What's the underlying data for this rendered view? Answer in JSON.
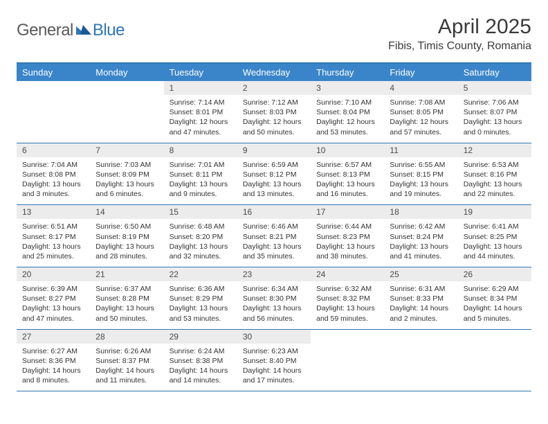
{
  "logo": {
    "text1": "General",
    "text2": "Blue"
  },
  "title": "April 2025",
  "location": "Fibis, Timis County, Romania",
  "colors": {
    "header_bg": "#3a85c9",
    "header_text": "#ffffff",
    "border": "#2f75b5",
    "daynum_bg": "#ececec",
    "text": "#333333",
    "logo_gray": "#5a5a5a",
    "logo_blue": "#2f75b5"
  },
  "day_headers": [
    "Sunday",
    "Monday",
    "Tuesday",
    "Wednesday",
    "Thursday",
    "Friday",
    "Saturday"
  ],
  "weeks": [
    [
      null,
      null,
      {
        "n": "1",
        "sunrise": "7:14 AM",
        "sunset": "8:01 PM",
        "daylight": "12 hours and 47 minutes."
      },
      {
        "n": "2",
        "sunrise": "7:12 AM",
        "sunset": "8:03 PM",
        "daylight": "12 hours and 50 minutes."
      },
      {
        "n": "3",
        "sunrise": "7:10 AM",
        "sunset": "8:04 PM",
        "daylight": "12 hours and 53 minutes."
      },
      {
        "n": "4",
        "sunrise": "7:08 AM",
        "sunset": "8:05 PM",
        "daylight": "12 hours and 57 minutes."
      },
      {
        "n": "5",
        "sunrise": "7:06 AM",
        "sunset": "8:07 PM",
        "daylight": "13 hours and 0 minutes."
      }
    ],
    [
      {
        "n": "6",
        "sunrise": "7:04 AM",
        "sunset": "8:08 PM",
        "daylight": "13 hours and 3 minutes."
      },
      {
        "n": "7",
        "sunrise": "7:03 AM",
        "sunset": "8:09 PM",
        "daylight": "13 hours and 6 minutes."
      },
      {
        "n": "8",
        "sunrise": "7:01 AM",
        "sunset": "8:11 PM",
        "daylight": "13 hours and 9 minutes."
      },
      {
        "n": "9",
        "sunrise": "6:59 AM",
        "sunset": "8:12 PM",
        "daylight": "13 hours and 13 minutes."
      },
      {
        "n": "10",
        "sunrise": "6:57 AM",
        "sunset": "8:13 PM",
        "daylight": "13 hours and 16 minutes."
      },
      {
        "n": "11",
        "sunrise": "6:55 AM",
        "sunset": "8:15 PM",
        "daylight": "13 hours and 19 minutes."
      },
      {
        "n": "12",
        "sunrise": "6:53 AM",
        "sunset": "8:16 PM",
        "daylight": "13 hours and 22 minutes."
      }
    ],
    [
      {
        "n": "13",
        "sunrise": "6:51 AM",
        "sunset": "8:17 PM",
        "daylight": "13 hours and 25 minutes."
      },
      {
        "n": "14",
        "sunrise": "6:50 AM",
        "sunset": "8:19 PM",
        "daylight": "13 hours and 28 minutes."
      },
      {
        "n": "15",
        "sunrise": "6:48 AM",
        "sunset": "8:20 PM",
        "daylight": "13 hours and 32 minutes."
      },
      {
        "n": "16",
        "sunrise": "6:46 AM",
        "sunset": "8:21 PM",
        "daylight": "13 hours and 35 minutes."
      },
      {
        "n": "17",
        "sunrise": "6:44 AM",
        "sunset": "8:23 PM",
        "daylight": "13 hours and 38 minutes."
      },
      {
        "n": "18",
        "sunrise": "6:42 AM",
        "sunset": "8:24 PM",
        "daylight": "13 hours and 41 minutes."
      },
      {
        "n": "19",
        "sunrise": "6:41 AM",
        "sunset": "8:25 PM",
        "daylight": "13 hours and 44 minutes."
      }
    ],
    [
      {
        "n": "20",
        "sunrise": "6:39 AM",
        "sunset": "8:27 PM",
        "daylight": "13 hours and 47 minutes."
      },
      {
        "n": "21",
        "sunrise": "6:37 AM",
        "sunset": "8:28 PM",
        "daylight": "13 hours and 50 minutes."
      },
      {
        "n": "22",
        "sunrise": "6:36 AM",
        "sunset": "8:29 PM",
        "daylight": "13 hours and 53 minutes."
      },
      {
        "n": "23",
        "sunrise": "6:34 AM",
        "sunset": "8:30 PM",
        "daylight": "13 hours and 56 minutes."
      },
      {
        "n": "24",
        "sunrise": "6:32 AM",
        "sunset": "8:32 PM",
        "daylight": "13 hours and 59 minutes."
      },
      {
        "n": "25",
        "sunrise": "6:31 AM",
        "sunset": "8:33 PM",
        "daylight": "14 hours and 2 minutes."
      },
      {
        "n": "26",
        "sunrise": "6:29 AM",
        "sunset": "8:34 PM",
        "daylight": "14 hours and 5 minutes."
      }
    ],
    [
      {
        "n": "27",
        "sunrise": "6:27 AM",
        "sunset": "8:36 PM",
        "daylight": "14 hours and 8 minutes."
      },
      {
        "n": "28",
        "sunrise": "6:26 AM",
        "sunset": "8:37 PM",
        "daylight": "14 hours and 11 minutes."
      },
      {
        "n": "29",
        "sunrise": "6:24 AM",
        "sunset": "8:38 PM",
        "daylight": "14 hours and 14 minutes."
      },
      {
        "n": "30",
        "sunrise": "6:23 AM",
        "sunset": "8:40 PM",
        "daylight": "14 hours and 17 minutes."
      },
      null,
      null,
      null
    ]
  ],
  "labels": {
    "sunrise": "Sunrise:",
    "sunset": "Sunset:",
    "daylight": "Daylight:"
  }
}
